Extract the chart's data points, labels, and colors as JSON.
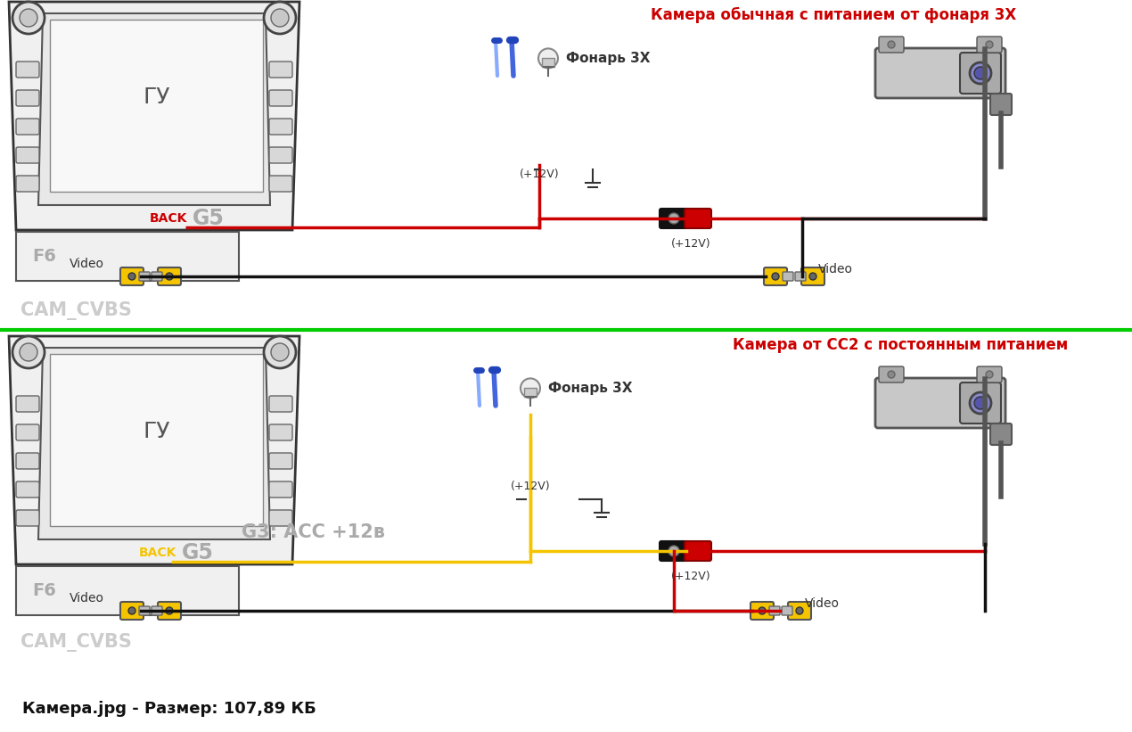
{
  "bg_color": "#ffffff",
  "title1": "Камера обычная с питанием от фонаря 3Х",
  "title2": "Камера от СС2 с постоянным питанием",
  "title1_color": "#cc0000",
  "title2_color": "#cc0000",
  "label_g3": "G3: АСС +12в",
  "label_g3_color": "#aaaaaa",
  "label_cam_cvbs": "CAM_CVBS",
  "label_gu": "ГУ",
  "label_f6": "F6",
  "label_back": "BACK",
  "label_g5": "G5",
  "label_video": "Video",
  "label_12v_fonary": "(+12V)",
  "label_12v_cam": "(+12V)",
  "label_fonary": "Фонарь 3Х",
  "separator_color": "#00cc00",
  "bottom_text": "Камера.jpg - Размер: 107,89 КБ",
  "wire_black": "#111111",
  "wire_red": "#cc0000",
  "wire_yellow": "#f5c400"
}
